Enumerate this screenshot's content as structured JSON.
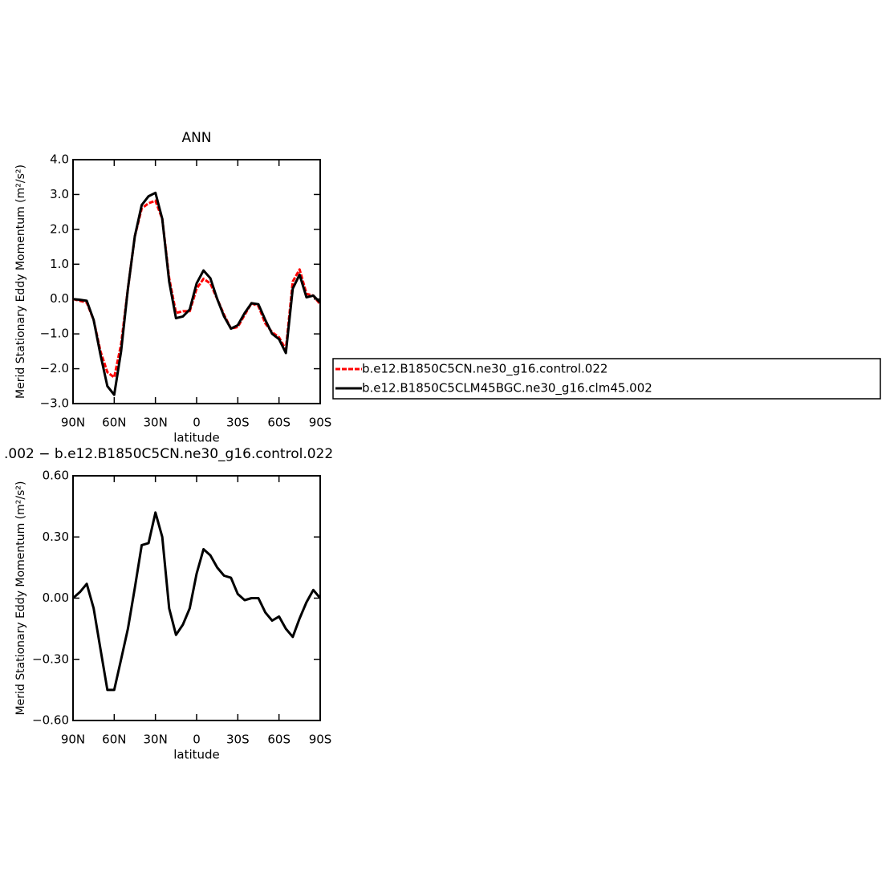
{
  "chart_data": [
    {
      "type": "line",
      "title": "ANN",
      "xlabel": "latitude",
      "ylabel": "Merid Stationary Eddy Momentum (m²/s²)",
      "x": [
        90,
        85,
        80,
        75,
        70,
        65,
        60,
        55,
        50,
        45,
        40,
        35,
        30,
        25,
        20,
        15,
        10,
        5,
        0,
        -5,
        -10,
        -15,
        -20,
        -25,
        -30,
        -35,
        -40,
        -45,
        -50,
        -55,
        -60,
        -65,
        -70,
        -75,
        -80,
        -85,
        -90
      ],
      "xlim": [
        90,
        -90
      ],
      "xticks": [
        {
          "value": 90,
          "label": "90N"
        },
        {
          "value": 60,
          "label": "60N"
        },
        {
          "value": 30,
          "label": "30N"
        },
        0,
        {
          "value": -30,
          "label": "30S"
        },
        {
          "value": -60,
          "label": "60S"
        },
        {
          "value": -90,
          "label": "90S"
        }
      ],
      "ylim": [
        -3,
        4
      ],
      "yticks": [
        {
          "value": -3,
          "label": "−3.0"
        },
        {
          "value": -2,
          "label": "−2.0"
        },
        {
          "value": -1,
          "label": "−1.0"
        },
        {
          "value": 0,
          "label": "0.0"
        },
        {
          "value": 1,
          "label": "1.0"
        },
        {
          "value": 2,
          "label": "2.0"
        },
        {
          "value": 3,
          "label": "3.0"
        },
        {
          "value": 4,
          "label": "4.0"
        }
      ],
      "legend": "right",
      "series": [
        {
          "name": "b.e12.B1850C5CN.ne30_g16.control.022",
          "color": "#ff0000",
          "dash": true,
          "values": [
            0,
            -0.05,
            -0.1,
            -0.6,
            -1.5,
            -2.1,
            -2.25,
            -1.3,
            0.3,
            1.8,
            2.6,
            2.75,
            2.82,
            2.3,
            0.6,
            -0.4,
            -0.35,
            -0.35,
            0.3,
            0.58,
            0.45,
            0,
            -0.45,
            -0.85,
            -0.8,
            -0.45,
            -0.12,
            -0.2,
            -0.7,
            -0.95,
            -1.1,
            -1.45,
            0.5,
            0.85,
            0.15,
            0.1,
            -0.15
          ]
        },
        {
          "name": "b.e12.B1850C5CLM45BGC.ne30_g16.clm45.002",
          "color": "#000000",
          "dash": false,
          "values": [
            0,
            -0.02,
            -0.05,
            -0.6,
            -1.6,
            -2.5,
            -2.75,
            -1.5,
            0.3,
            1.8,
            2.7,
            2.95,
            3.05,
            2.3,
            0.5,
            -0.55,
            -0.5,
            -0.3,
            0.45,
            0.82,
            0.6,
            0,
            -0.5,
            -0.85,
            -0.75,
            -0.4,
            -0.12,
            -0.15,
            -0.6,
            -1,
            -1.15,
            -1.55,
            0.3,
            0.7,
            0.05,
            0.1,
            -0.1
          ]
        }
      ]
    },
    {
      "type": "line",
      "title": ".002 − b.e12.B1850C5CN.ne30_g16.control.022",
      "xlabel": "latitude",
      "ylabel": "Merid Stationary Eddy Momentum (m²/s²)",
      "x": [
        90,
        85,
        80,
        75,
        70,
        65,
        60,
        55,
        50,
        45,
        40,
        35,
        30,
        25,
        20,
        15,
        10,
        5,
        0,
        -5,
        -10,
        -15,
        -20,
        -25,
        -30,
        -35,
        -40,
        -45,
        -50,
        -55,
        -60,
        -65,
        -70,
        -75,
        -80,
        -85,
        -90
      ],
      "xlim": [
        90,
        -90
      ],
      "xticks": [
        {
          "value": 90,
          "label": "90N"
        },
        {
          "value": 60,
          "label": "60N"
        },
        {
          "value": 30,
          "label": "30N"
        },
        0,
        {
          "value": -30,
          "label": "30S"
        },
        {
          "value": -60,
          "label": "60S"
        },
        {
          "value": -90,
          "label": "90S"
        }
      ],
      "ylim": [
        -0.6,
        0.6
      ],
      "yticks": [
        {
          "value": -0.6,
          "label": "−0.60"
        },
        {
          "value": -0.3,
          "label": "−0.30"
        },
        {
          "value": 0,
          "label": "0.00"
        },
        {
          "value": 0.3,
          "label": "0.30"
        },
        {
          "value": 0.6,
          "label": "0.60"
        }
      ],
      "series": [
        {
          "color": "#000000",
          "dash": false,
          "values": [
            0,
            0.03,
            0.07,
            -0.05,
            -0.25,
            -0.45,
            -0.45,
            -0.3,
            -0.15,
            0.05,
            0.26,
            0.27,
            0.42,
            0.3,
            -0.05,
            -0.18,
            -0.13,
            -0.05,
            0.12,
            0.24,
            0.21,
            0.15,
            0.11,
            0.1,
            0.02,
            -0.01,
            0,
            0,
            -0.07,
            -0.11,
            -0.09,
            -0.15,
            -0.19,
            -0.1,
            -0.02,
            0.04,
            0
          ]
        }
      ]
    }
  ]
}
